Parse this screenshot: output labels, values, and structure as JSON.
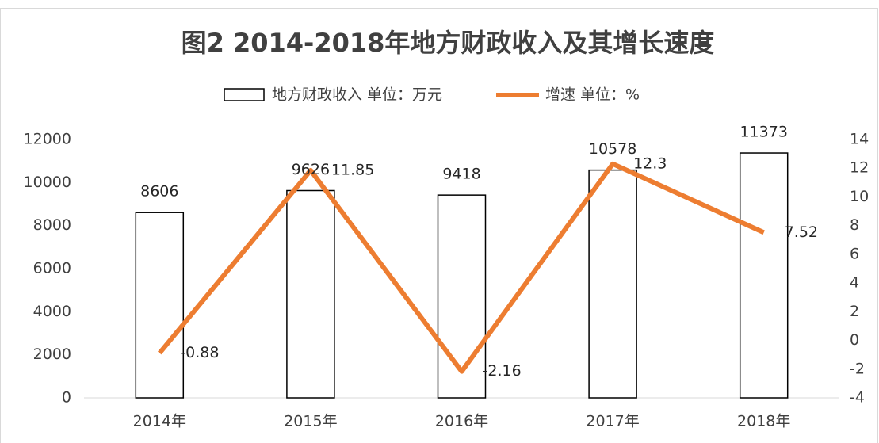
{
  "chart_data": {
    "type": "bar_line",
    "title": "图2 2014-2018年地方财政收入及其增长速度",
    "categories": [
      "2014年",
      "2015年",
      "2016年",
      "2017年",
      "2018年"
    ],
    "series": [
      {
        "name": "地方财政收入 单位：万元",
        "type": "bar",
        "color": "#ffffff",
        "edgecolor": "#000000",
        "values": [
          8606,
          9626,
          9418,
          10578,
          11373
        ]
      },
      {
        "name": "增速 单位：%",
        "type": "line",
        "axis": "y2",
        "color": "#ed7d31",
        "values": [
          -0.88,
          11.85,
          -2.16,
          12.3,
          7.52
        ]
      }
    ],
    "ylim": [
      0,
      12000
    ],
    "yticks": [
      0,
      2000,
      4000,
      6000,
      8000,
      10000,
      12000
    ],
    "y2lim": [
      -4,
      14
    ],
    "y2ticks": [
      -4,
      -2,
      0,
      2,
      4,
      6,
      8,
      10,
      12,
      14
    ],
    "legend": "top"
  }
}
